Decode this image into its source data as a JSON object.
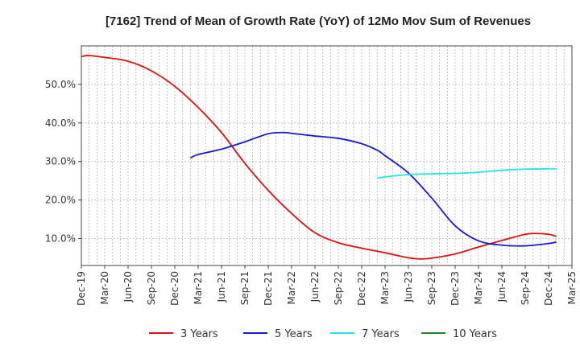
{
  "chart_data": {
    "type": "line",
    "title": "[7162]  Trend of Mean of Growth Rate (YoY) of 12Mo Mov Sum of Revenues",
    "xlabel": "",
    "ylabel": "",
    "x_ticks": [
      "Dec-19",
      "Mar-20",
      "Jun-20",
      "Sep-20",
      "Dec-20",
      "Mar-21",
      "Jun-21",
      "Sep-21",
      "Dec-21",
      "Mar-22",
      "Jun-22",
      "Sep-22",
      "Dec-22",
      "Mar-23",
      "Jun-23",
      "Sep-23",
      "Dec-23",
      "Mar-24",
      "Jun-24",
      "Sep-24",
      "Dec-24",
      "Mar-25"
    ],
    "y_ticks": [
      "10.0%",
      "20.0%",
      "30.0%",
      "40.0%",
      "50.0%"
    ],
    "y_tick_values": [
      10,
      20,
      30,
      40,
      50
    ],
    "ylim": [
      3,
      60
    ],
    "grid": true,
    "legend_position": "bottom",
    "series": [
      {
        "name": "3 Years",
        "color": "#dd1111",
        "points": [
          [
            0,
            57.2
          ],
          [
            0.33,
            57.5
          ],
          [
            1,
            57.0
          ],
          [
            2,
            56.0
          ],
          [
            3,
            53.5
          ],
          [
            4,
            49.5
          ],
          [
            5,
            44.0
          ],
          [
            6,
            37.5
          ],
          [
            7,
            29.5
          ],
          [
            8,
            22.5
          ],
          [
            9,
            16.5
          ],
          [
            10,
            11.5
          ],
          [
            11,
            8.9
          ],
          [
            12,
            7.5
          ],
          [
            13,
            6.3
          ],
          [
            14,
            5.0
          ],
          [
            14.5,
            4.7
          ],
          [
            15,
            4.9
          ],
          [
            16,
            6.0
          ],
          [
            17,
            7.8
          ],
          [
            18,
            9.5
          ],
          [
            19,
            11.1
          ],
          [
            19.5,
            11.3
          ],
          [
            20,
            11.1
          ],
          [
            20.33,
            10.6
          ]
        ]
      },
      {
        "name": "5 Years",
        "color": "#1a1acc",
        "points": [
          [
            4.67,
            30.9
          ],
          [
            5,
            31.8
          ],
          [
            6,
            33.2
          ],
          [
            7,
            35.1
          ],
          [
            8,
            37.2
          ],
          [
            8.67,
            37.5
          ],
          [
            9,
            37.3
          ],
          [
            10,
            36.6
          ],
          [
            11,
            36.0
          ],
          [
            12,
            34.6
          ],
          [
            12.67,
            32.9
          ],
          [
            13,
            31.5
          ],
          [
            14,
            27.0
          ],
          [
            15,
            20.5
          ],
          [
            16,
            13.3
          ],
          [
            17,
            9.4
          ],
          [
            18,
            8.3
          ],
          [
            19,
            8.1
          ],
          [
            20,
            8.7
          ],
          [
            20.33,
            9.1
          ]
        ]
      },
      {
        "name": "7 Years",
        "color": "#22e6e6",
        "points": [
          [
            12.67,
            25.7
          ],
          [
            13,
            26.0
          ],
          [
            14,
            26.6
          ],
          [
            15,
            26.8
          ],
          [
            16,
            26.9
          ],
          [
            17,
            27.2
          ],
          [
            18,
            27.7
          ],
          [
            19,
            28.0
          ],
          [
            20,
            28.1
          ],
          [
            20.33,
            28.1
          ]
        ]
      },
      {
        "name": "10 Years",
        "color": "#228822",
        "points": []
      }
    ]
  }
}
